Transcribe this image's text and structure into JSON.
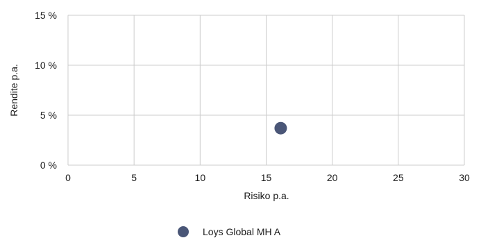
{
  "chart_data": {
    "type": "scatter",
    "xlabel": "Risiko p.a.",
    "ylabel": "Rendite p.a.",
    "xlim": [
      0,
      30
    ],
    "ylim": [
      0,
      15
    ],
    "x_ticks": [
      "0",
      "5",
      "10",
      "15",
      "20",
      "25",
      "30"
    ],
    "y_ticks": [
      "0 %",
      "5 %",
      "10 %",
      "15 %"
    ],
    "grid": true,
    "legend_position": "bottom",
    "series": [
      {
        "name": "Loys Global MH A",
        "color": "#4a5677",
        "points": [
          {
            "x": 16.1,
            "y": 3.7
          }
        ]
      }
    ]
  }
}
